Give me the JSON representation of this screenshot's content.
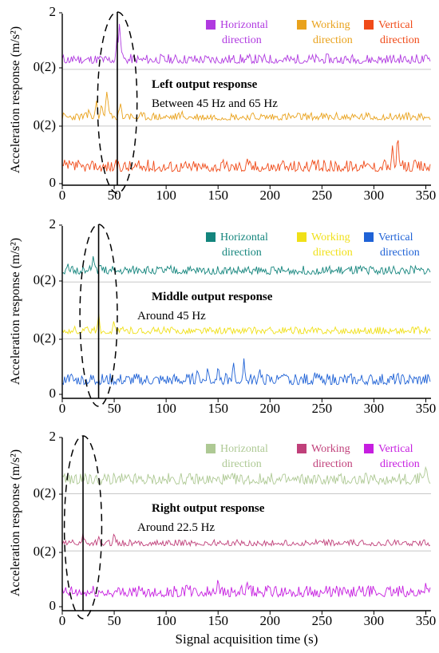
{
  "xlabel": "Signal acquisition time (s)",
  "ylabel": "Acceleration response (m/s²)",
  "chart_data": [
    {
      "type": "line",
      "panel_title": "Left output response",
      "annotation": "Between 45 Hz and 65 Hz",
      "y_ticks": [
        "2",
        "0(2)",
        "0(2)",
        "0"
      ],
      "x_ticks": [
        "0",
        "50",
        "100",
        "150",
        "200",
        "250",
        "300",
        "350"
      ],
      "xlim": [
        0,
        355
      ],
      "marker_time": 53,
      "ellipse": {
        "center": 53,
        "half_width": 19
      },
      "series": [
        {
          "name": "Horizontal direction",
          "color": "#b03ae0",
          "offset": 1.36,
          "base": 0.06,
          "amp": 0.11,
          "seed": 11,
          "peaks": [
            [
              55,
              0.5
            ],
            [
              53,
              0.42
            ],
            [
              56,
              0.36
            ],
            [
              12,
              0.14
            ],
            [
              38,
              0.15
            ]
          ]
        },
        {
          "name": "Working direction",
          "color": "#e9a21c",
          "offset": 0.7,
          "base": 0.06,
          "amp": 0.09,
          "seed": 23,
          "peaks": [
            [
              43,
              0.48
            ],
            [
              33,
              0.3
            ],
            [
              38,
              0.26
            ],
            [
              56,
              0.28
            ],
            [
              26,
              0.22
            ],
            [
              115,
              0.18
            ],
            [
              63,
              0.16
            ]
          ]
        },
        {
          "name": "Vertical direction",
          "color": "#f04a18",
          "offset": 0.06,
          "base": 0.1,
          "amp": 0.14,
          "seed": 37,
          "peaks": [
            [
              323,
              0.5
            ],
            [
              318,
              0.4
            ],
            [
              310,
              0.3
            ],
            [
              178,
              0.3
            ],
            [
              212,
              0.28
            ],
            [
              240,
              0.22
            ],
            [
              288,
              0.24
            ],
            [
              52,
              0.18
            ],
            [
              30,
              0.16
            ],
            [
              15,
              0.12
            ]
          ]
        }
      ]
    },
    {
      "type": "line",
      "panel_title": "Middle output response",
      "annotation": "Around 45 Hz",
      "y_ticks": [
        "2",
        "0(2)",
        "0(2)",
        "0"
      ],
      "x_ticks": [
        "0",
        "50",
        "100",
        "150",
        "200",
        "250",
        "300",
        "350"
      ],
      "xlim": [
        0,
        355
      ],
      "marker_time": 35,
      "ellipse": {
        "center": 35,
        "half_width": 18
      },
      "series": [
        {
          "name": "Horizontal direction",
          "color": "#14857d",
          "offset": 1.36,
          "base": 0.08,
          "amp": 0.1,
          "seed": 51,
          "peaks": [
            [
              30,
              0.32
            ],
            [
              37,
              0.24
            ],
            [
              5,
              0.22
            ],
            [
              75,
              0.18
            ],
            [
              20,
              0.18
            ],
            [
              300,
              0.14
            ],
            [
              225,
              0.12
            ]
          ]
        },
        {
          "name": "Working direction",
          "color": "#f0e018",
          "offset": 0.7,
          "base": 0.05,
          "amp": 0.08,
          "seed": 63,
          "peaks": [
            [
              35,
              0.28
            ],
            [
              50,
              0.22
            ],
            [
              23,
              0.16
            ],
            [
              12,
              0.14
            ],
            [
              62,
              0.12
            ]
          ]
        },
        {
          "name": "Vertical direction",
          "color": "#1f62d6",
          "offset": 0.06,
          "base": 0.1,
          "amp": 0.13,
          "seed": 77,
          "peaks": [
            [
              175,
              0.44
            ],
            [
              165,
              0.4
            ],
            [
              150,
              0.38
            ],
            [
              140,
              0.34
            ],
            [
              130,
              0.3
            ],
            [
              190,
              0.3
            ],
            [
              243,
              0.32
            ],
            [
              8,
              0.28
            ],
            [
              30,
              0.26
            ],
            [
              210,
              0.22
            ]
          ]
        }
      ]
    },
    {
      "type": "line",
      "panel_title": "Right output response",
      "annotation": "Around 22.5 Hz",
      "y_ticks": [
        "2",
        "0(2)",
        "0(2)",
        "0"
      ],
      "x_ticks": [
        "0",
        "50",
        "100",
        "150",
        "200",
        "250",
        "300",
        "350"
      ],
      "xlim": [
        0,
        355
      ],
      "marker_time": 20,
      "ellipse": {
        "center": 20,
        "half_width": 18
      },
      "series": [
        {
          "name": "Horizontal direction",
          "color": "#aec994",
          "offset": 1.36,
          "base": 0.1,
          "amp": 0.13,
          "seed": 91,
          "peaks": [
            [
              350,
              0.36
            ],
            [
              345,
              0.3
            ],
            [
              20,
              0.22
            ],
            [
              5,
              0.2
            ],
            [
              318,
              0.22
            ],
            [
              330,
              0.2
            ],
            [
              45,
              0.16
            ]
          ]
        },
        {
          "name": "Working direction",
          "color": "#c0407a",
          "offset": 0.7,
          "base": 0.05,
          "amp": 0.07,
          "seed": 103,
          "peaks": [
            [
              50,
              0.24
            ],
            [
              20,
              0.2
            ],
            [
              35,
              0.16
            ],
            [
              10,
              0.12
            ]
          ]
        },
        {
          "name": "Vertical direction",
          "color": "#c61ee0",
          "offset": 0.06,
          "base": 0.1,
          "amp": 0.13,
          "seed": 117,
          "peaks": [
            [
              150,
              0.4
            ],
            [
              120,
              0.3
            ],
            [
              178,
              0.3
            ],
            [
              200,
              0.26
            ],
            [
              300,
              0.24
            ],
            [
              350,
              0.28
            ],
            [
              238,
              0.22
            ],
            [
              60,
              0.18
            ],
            [
              90,
              0.16
            ]
          ]
        }
      ]
    }
  ]
}
